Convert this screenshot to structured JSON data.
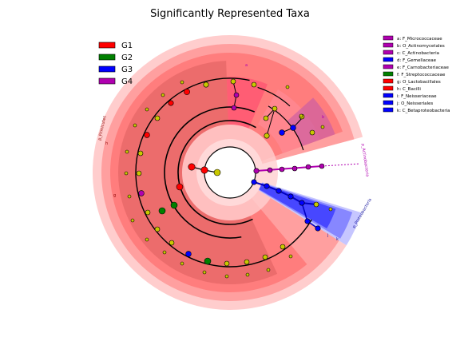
{
  "title": "Significantly Represented Taxa",
  "groups": [
    {
      "label": "G1",
      "color": "#ff0000"
    },
    {
      "label": "G2",
      "color": "#008000"
    },
    {
      "label": "G3",
      "color": "#0000ff"
    },
    {
      "label": "G4",
      "color": "#b000b0"
    }
  ],
  "taxa_legend": [
    {
      "label": "a: F_Micrococcaceae",
      "color": "#b000b0"
    },
    {
      "label": "b: O_Actinomycetales",
      "color": "#b000b0"
    },
    {
      "label": "c: C_Actinobacteria",
      "color": "#b000b0"
    },
    {
      "label": "d: F_Gemellaceae",
      "color": "#0000ff"
    },
    {
      "label": "e: F_Carnobacteriaceae",
      "color": "#b000b0"
    },
    {
      "label": "f: F_Streptococcaceae",
      "color": "#008000"
    },
    {
      "label": "g: O_Lactobacillales",
      "color": "#ff0000"
    },
    {
      "label": "h: C_Bacilli",
      "color": "#ff0000"
    },
    {
      "label": "i: F_Neisseriaceae",
      "color": "#0000ff"
    },
    {
      "label": "j: O_Neisseriales",
      "color": "#0000ff"
    },
    {
      "label": "k: C_Betaproteobacteria",
      "color": "#0000ff"
    }
  ],
  "clade_labels": [
    {
      "text": "p_Firmicutes",
      "color": "#8b0000"
    },
    {
      "text": "p_Actinobacteria",
      "color": "#b000b0"
    },
    {
      "text": "p_Proteobacteria",
      "color": "#1a1aa0"
    }
  ],
  "small_letters": [
    {
      "text": "a",
      "color": "#b000b0"
    },
    {
      "text": "b",
      "color": "#b000b0"
    },
    {
      "text": "h",
      "color": "#8b0000"
    },
    {
      "text": "g",
      "color": "#8b0000"
    },
    {
      "text": "j",
      "color": "#1a1aa0"
    },
    {
      "text": "k",
      "color": "#1a1aa0"
    }
  ],
  "colors": {
    "node_default": "#c8c800",
    "firmicutes_ring_outer": "#ffc8c8",
    "firmicutes_ring_mid": "#ff9a9a",
    "firmicutes_ring_inner": "#ff6060",
    "bacilli_sector": "#e06060",
    "proteo_outer": "#c0c0ff",
    "proteo_inner": "#4040ff",
    "actino_line": "#b000b0"
  }
}
